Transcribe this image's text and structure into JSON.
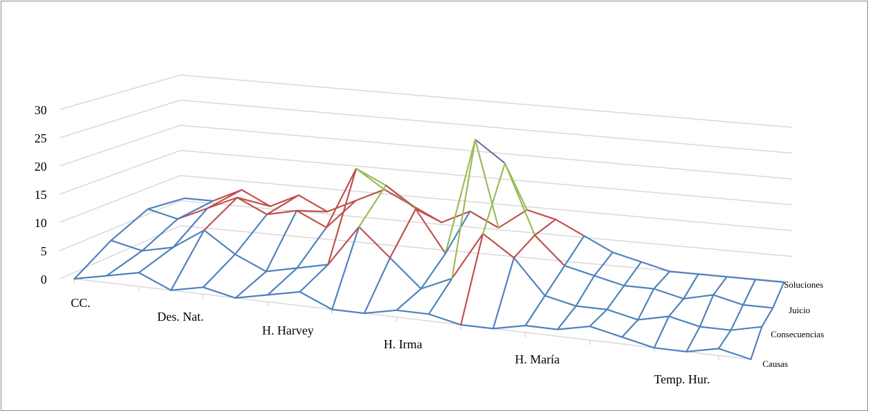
{
  "chart_data": {
    "type": "surface-wireframe-3d",
    "title": "",
    "categories": [
      "CC.",
      "Des. Nat.",
      "H. Harvey",
      "H. Irma",
      "H. María",
      "Temp. Hur."
    ],
    "series_names": [
      "Causas",
      "Consecuencias",
      "Juicio",
      "Soluciones"
    ],
    "z_ticks": [
      0,
      5,
      10,
      15,
      20,
      25,
      30
    ],
    "zlim": [
      0,
      30
    ],
    "band_step": 5,
    "grid": true,
    "legend": "none",
    "values": [
      [
        0,
        1,
        2,
        0,
        1,
        0,
        1,
        2,
        0,
        0,
        1,
        1,
        0,
        0,
        1,
        1,
        2,
        1,
        0,
        0,
        1,
        0
      ],
      [
        3,
        2,
        3,
        6,
        3,
        1,
        2,
        3,
        9,
        5,
        1,
        3,
        10,
        7,
        2,
        1,
        1,
        0,
        1,
        0,
        0,
        1
      ],
      [
        5,
        4,
        6,
        8,
        6,
        7,
        5,
        14,
        12,
        9,
        3,
        20,
        17,
        7,
        3,
        2,
        1,
        1,
        0,
        1,
        0,
        0
      ],
      [
        4,
        4,
        6,
        4,
        6,
        4,
        6,
        8,
        6,
        4,
        6,
        4,
        7,
        6,
        4,
        2,
        1,
        0,
        0,
        0,
        0,
        0
      ]
    ],
    "band_colors": [
      "#4f81bd",
      "#c0504d",
      "#9bbb59",
      "#8064a2",
      "#4bacc6",
      "#f79646"
    ]
  }
}
